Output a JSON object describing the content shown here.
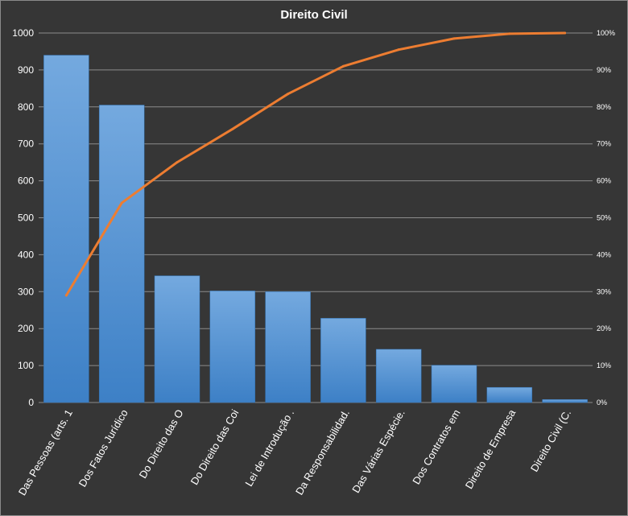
{
  "chart_data": {
    "type": "bar",
    "title": "Direito  Civil",
    "categories": [
      "Das Pessoas (arts. 1",
      "Dos Fatos Jurídico",
      "Do Direito das O",
      "Do Direito das Coi",
      "Lei de Introdução .",
      "Da Responsabilidad.",
      "Das Várias Espécie.",
      "Dos Contratos em",
      "Direito de Empresa",
      "Direito Civil (C."
    ],
    "series": [
      {
        "values": [
          940,
          805,
          343,
          302,
          300,
          228,
          144,
          101,
          41,
          8
        ]
      },
      {
        "axis": "right",
        "type": "line",
        "values": [
          29,
          54,
          65,
          74,
          83.5,
          91,
          95.5,
          98.5,
          99.8,
          100
        ]
      }
    ],
    "ylim": [
      0,
      1000
    ],
    "yticks": [
      "1000",
      "900",
      "800",
      "700",
      "600",
      "500",
      "400",
      "300",
      "200",
      "100",
      "0"
    ],
    "y2lim": [
      0,
      100
    ],
    "y2ticks": [
      "100%",
      "90%",
      "80%",
      "70%",
      "60%",
      "50%",
      "40%",
      "30%",
      "20%",
      "10%",
      "0%"
    ],
    "grid": true,
    "legend": "none",
    "colors": {
      "background": "#363636",
      "bar_top": "#74a9df",
      "bar_bottom": "#3d80c6",
      "line": "#ed7d31",
      "grid": "#8c8c8c"
    }
  }
}
